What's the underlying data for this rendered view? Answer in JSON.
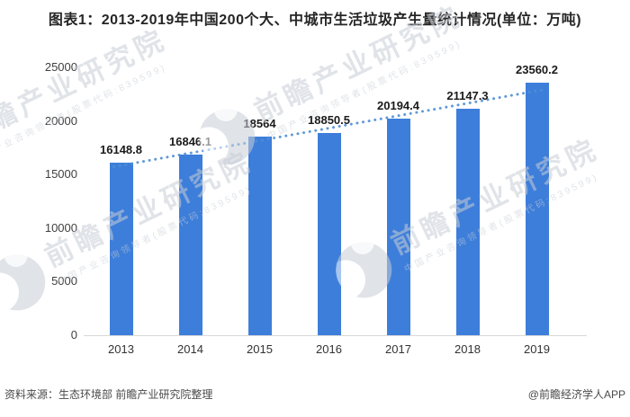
{
  "title": "图表1：2013-2019年中国200个大、中城市生活垃圾产生量统计情况(单位：万吨)",
  "chart_data": {
    "type": "bar",
    "title": "图表1：2013-2019年中国200个大、中城市生活垃圾产生量统计情况",
    "unit": "万吨",
    "categories": [
      "2013",
      "2014",
      "2015",
      "2016",
      "2017",
      "2018",
      "2019"
    ],
    "values": [
      16148.8,
      16846.1,
      18564,
      18850.5,
      20194.4,
      21147.3,
      23560.2
    ],
    "value_labels": [
      "16148.8",
      "16846.1",
      "18564",
      "18850.5",
      "20194.4",
      "21147.3",
      "23560.2"
    ],
    "ylim": [
      0,
      25000
    ],
    "yticks": [
      0,
      5000,
      10000,
      15000,
      20000,
      25000
    ],
    "grid": false,
    "legend": "none",
    "trendline": "linear-dotted",
    "colors": {
      "bar": "#3D7EDA",
      "trend": "#4E8FD6",
      "axis_line": "#D8D8D8"
    }
  },
  "footer": {
    "source": "资料来源：生态环境部 前瞻产业研究院整理",
    "credit": "@前瞻经济学人APP"
  },
  "watermark": {
    "text": "前瞻产业研究院",
    "subtext": "中国产业咨询领导者(股票代码:839599)"
  }
}
